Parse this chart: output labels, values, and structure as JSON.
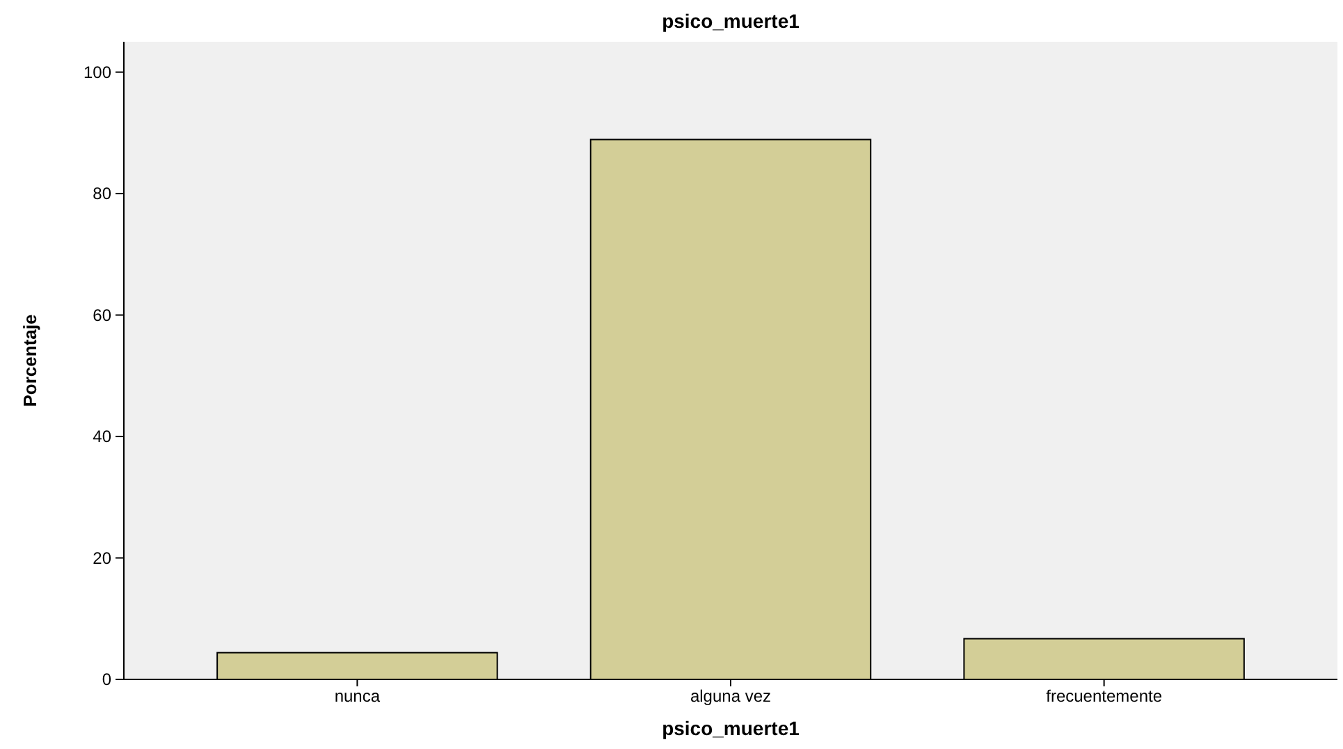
{
  "chart_data": {
    "type": "bar",
    "title": "psico_muerte1",
    "xlabel": "psico_muerte1",
    "ylabel": "Porcentaje",
    "categories": [
      "nunca",
      "alguna vez",
      "frecuentemente"
    ],
    "values": [
      4.4,
      88.9,
      6.7
    ],
    "color": "#d3ce97",
    "ylim": [
      0,
      105
    ],
    "yticks": [
      0,
      20,
      40,
      60,
      80,
      100
    ],
    "grid": false
  }
}
